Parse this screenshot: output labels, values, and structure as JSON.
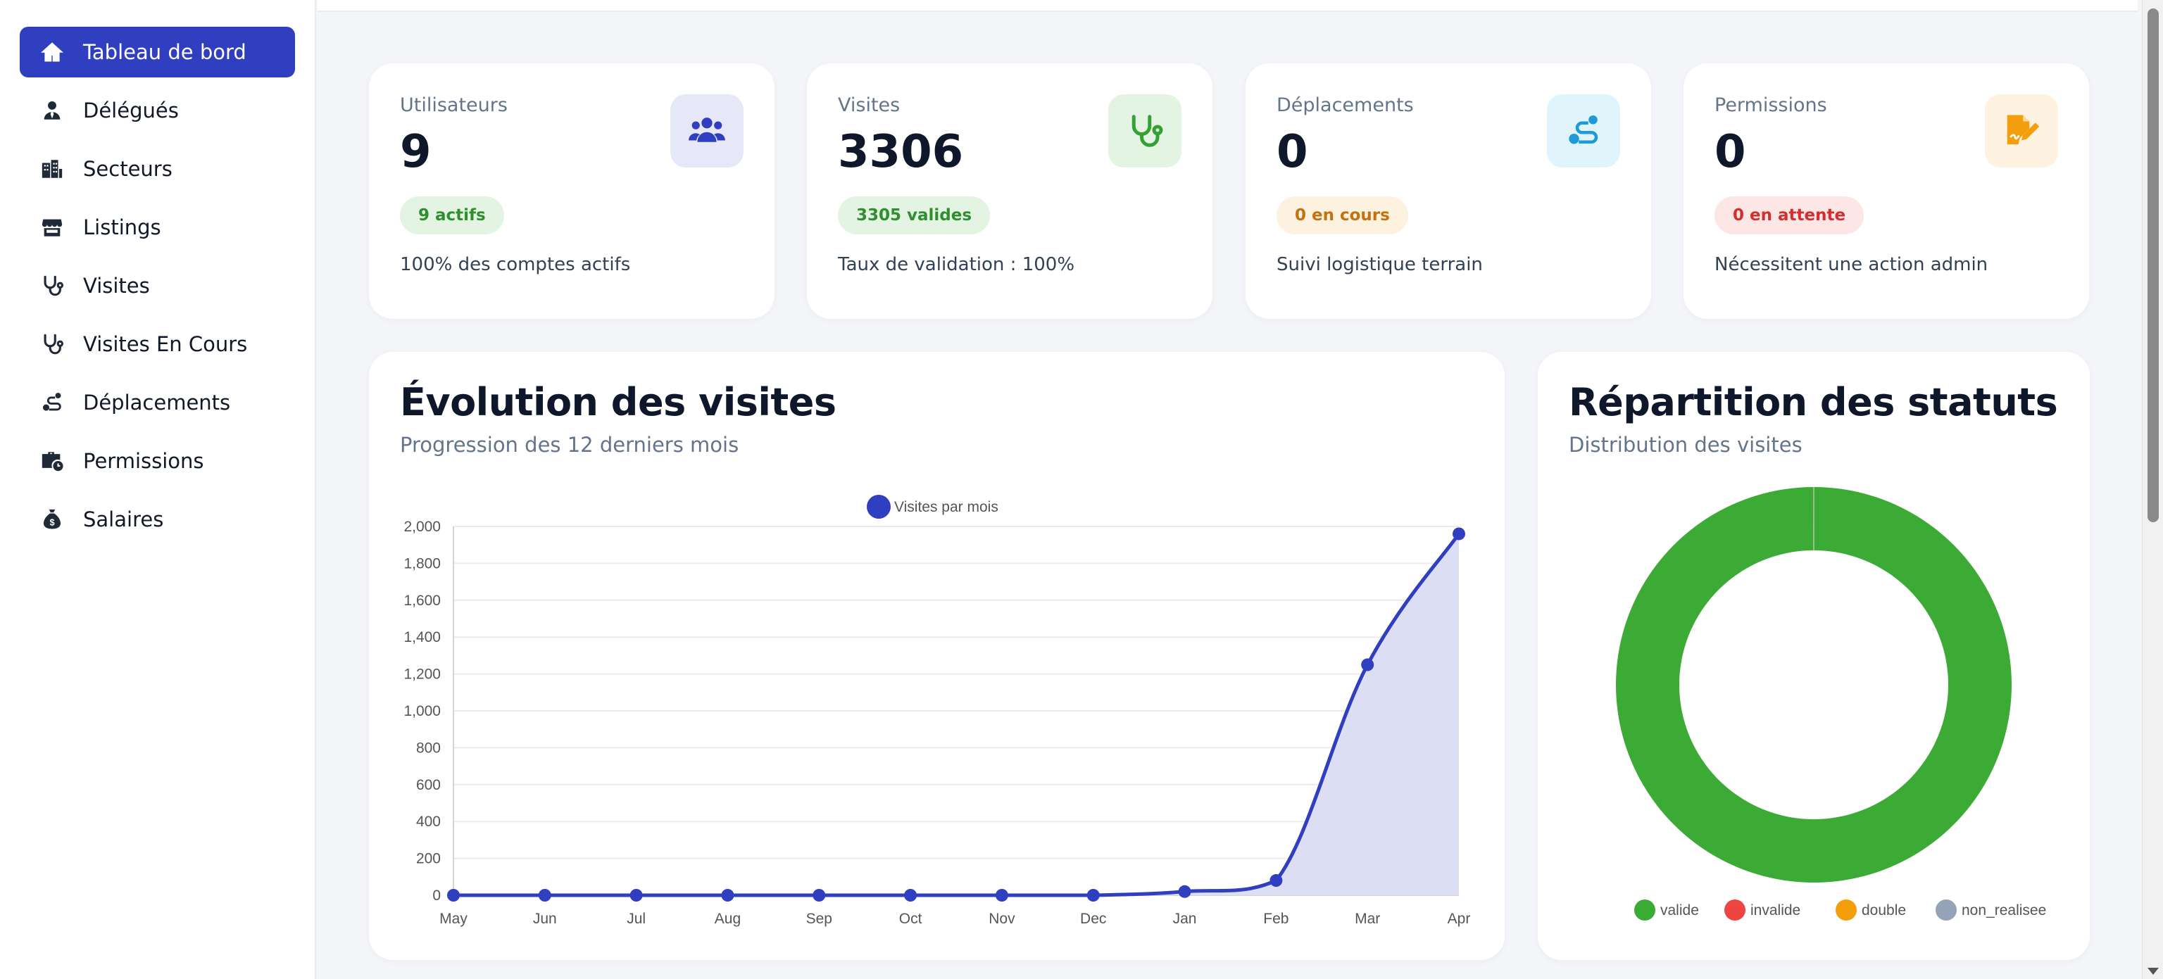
{
  "sidebar": {
    "items": [
      {
        "label": "Tableau de bord",
        "icon": "home-icon",
        "active": true
      },
      {
        "label": "Délégués",
        "icon": "user-tie-icon"
      },
      {
        "label": "Secteurs",
        "icon": "buildings-icon"
      },
      {
        "label": "Listings",
        "icon": "store-icon"
      },
      {
        "label": "Visites",
        "icon": "stethoscope-icon"
      },
      {
        "label": "Visites En Cours",
        "icon": "stethoscope-icon"
      },
      {
        "label": "Déplacements",
        "icon": "route-icon"
      },
      {
        "label": "Permissions",
        "icon": "briefcase-clock-icon"
      },
      {
        "label": "Salaires",
        "icon": "money-bag-icon"
      }
    ]
  },
  "stats": [
    {
      "label": "Utilisateurs",
      "value": "9",
      "badge": "9 actifs",
      "note": "100% des comptes actifs",
      "icon": "users-icon",
      "badge_bg": "#e3f4e3",
      "badge_color": "#2f8f2f",
      "icon_bg": "#e6e8f7",
      "icon_color": "#2f3fbf"
    },
    {
      "label": "Visites",
      "value": "3306",
      "badge": "3305 valides",
      "note": "Taux de validation : 100%",
      "icon": "stethoscope-icon",
      "badge_bg": "#e3f4e3",
      "badge_color": "#2f8f2f",
      "icon_bg": "#e3f4e3",
      "icon_color": "#33a133"
    },
    {
      "label": "Déplacements",
      "value": "0",
      "badge": "0 en cours",
      "note": "Suivi logistique terrain",
      "icon": "route-icon",
      "badge_bg": "#fdf1df",
      "badge_color": "#c27310",
      "icon_bg": "#e0f4fb",
      "icon_color": "#1e9bd7"
    },
    {
      "label": "Permissions",
      "value": "0",
      "badge": "0 en attente",
      "note": "Nécessitent une action admin",
      "icon": "file-signature-icon",
      "badge_bg": "#fde6e6",
      "badge_color": "#d32f2f",
      "icon_bg": "#fef2e0",
      "icon_color": "#f59e0b"
    }
  ],
  "evolution": {
    "title": "Évolution des visites",
    "subtitle": "Progression des 12 derniers mois"
  },
  "repartition": {
    "title": "Répartition des statuts",
    "subtitle": "Distribution des visites"
  },
  "chart_data": [
    {
      "type": "line",
      "x": [
        "May",
        "Jun",
        "Jul",
        "Aug",
        "Sep",
        "Oct",
        "Nov",
        "Dec",
        "Jan",
        "Feb",
        "Mar",
        "Apr"
      ],
      "series": [
        {
          "name": "Visites par mois",
          "values": [
            0,
            0,
            0,
            0,
            0,
            0,
            0,
            0,
            20,
            80,
            1250,
            1960
          ],
          "color": "#2f3fbf",
          "fill": "#dcdff3"
        }
      ],
      "ylim": [
        0,
        2000
      ],
      "yticks": [
        "0",
        "200",
        "400",
        "600",
        "800",
        "1,000",
        "1,200",
        "1,400",
        "1,600",
        "1,800",
        "2,000"
      ],
      "grid": true,
      "legend": "top-center"
    },
    {
      "type": "pie",
      "categories": [
        "valide",
        "invalide",
        "double",
        "non_realisee"
      ],
      "values": [
        3305,
        1,
        0,
        0
      ],
      "colors": [
        "#3cab36",
        "#ef4444",
        "#f59e0b",
        "#94a3b8"
      ],
      "legend": "bottom"
    }
  ]
}
